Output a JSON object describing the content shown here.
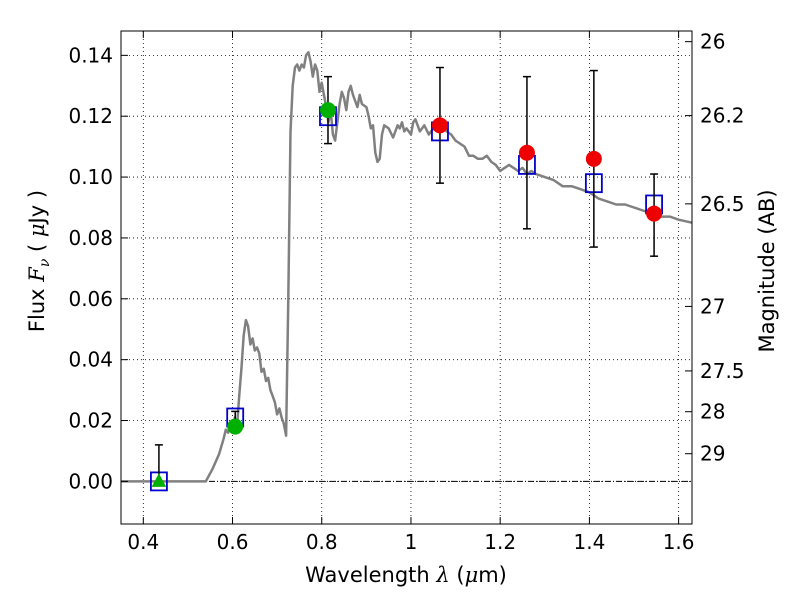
{
  "chart_data": {
    "type": "scatter",
    "xlabel": {
      "pre": "Wavelength ",
      "sym": "λ",
      "unit_open": " (",
      "unit_sym": "μ",
      "unit_rest": "m)"
    },
    "ylabel": {
      "pre": "Flux ",
      "sym": "F",
      "sub": "ν",
      "unit_open": " ( ",
      "unit_sym": "μ",
      "unit_rest": "Jy )"
    },
    "y2label": "Magnitude (AB)",
    "xlim": [
      0.35,
      1.63
    ],
    "ylim": [
      -0.014,
      0.148
    ],
    "xticks": [
      0.4,
      0.6,
      0.8,
      1.0,
      1.2,
      1.4,
      1.6
    ],
    "xtick_labels": [
      "0.4",
      "0.6",
      "0.8",
      "1",
      "1.2",
      "1.4",
      "1.6"
    ],
    "yticks": [
      0.0,
      0.02,
      0.04,
      0.06,
      0.08,
      0.1,
      0.12,
      0.14
    ],
    "ytick_labels": [
      "0.00",
      "0.02",
      "0.04",
      "0.06",
      "0.08",
      "0.10",
      "0.12",
      "0.14"
    ],
    "right_ticks": [
      {
        "label": "26",
        "flux": 0.1445
      },
      {
        "label": "26.2",
        "flux": 0.1202
      },
      {
        "label": "26.5",
        "flux": 0.0912
      },
      {
        "label": "27",
        "flux": 0.0575
      },
      {
        "label": "27.5",
        "flux": 0.0363
      },
      {
        "label": "28",
        "flux": 0.0229
      },
      {
        "label": "29",
        "flux": 0.0091
      }
    ],
    "grid": true,
    "zero_line": true,
    "colors": {
      "model": "#808080",
      "template": "#0000cc",
      "green": "#00b000",
      "red": "#ee0000",
      "errbar": "#000000"
    },
    "model_spectrum": [
      [
        0.35,
        0.0
      ],
      [
        0.54,
        0.0
      ],
      [
        0.555,
        0.004
      ],
      [
        0.57,
        0.009
      ],
      [
        0.58,
        0.014
      ],
      [
        0.585,
        0.017
      ],
      [
        0.59,
        0.016
      ],
      [
        0.595,
        0.019
      ],
      [
        0.6,
        0.016
      ],
      [
        0.605,
        0.021
      ],
      [
        0.61,
        0.018
      ],
      [
        0.615,
        0.028
      ],
      [
        0.62,
        0.037
      ],
      [
        0.625,
        0.048
      ],
      [
        0.63,
        0.053
      ],
      [
        0.635,
        0.051
      ],
      [
        0.64,
        0.045
      ],
      [
        0.645,
        0.047
      ],
      [
        0.65,
        0.043
      ],
      [
        0.655,
        0.044
      ],
      [
        0.66,
        0.042
      ],
      [
        0.665,
        0.036
      ],
      [
        0.67,
        0.037
      ],
      [
        0.675,
        0.033
      ],
      [
        0.68,
        0.034
      ],
      [
        0.685,
        0.03
      ],
      [
        0.69,
        0.028
      ],
      [
        0.695,
        0.026
      ],
      [
        0.7,
        0.022
      ],
      [
        0.705,
        0.024
      ],
      [
        0.71,
        0.021
      ],
      [
        0.715,
        0.019
      ],
      [
        0.72,
        0.015
      ],
      [
        0.725,
        0.06
      ],
      [
        0.73,
        0.115
      ],
      [
        0.735,
        0.13
      ],
      [
        0.74,
        0.136
      ],
      [
        0.745,
        0.137
      ],
      [
        0.75,
        0.135
      ],
      [
        0.755,
        0.137
      ],
      [
        0.76,
        0.136
      ],
      [
        0.765,
        0.14
      ],
      [
        0.77,
        0.141
      ],
      [
        0.775,
        0.138
      ],
      [
        0.78,
        0.133
      ],
      [
        0.785,
        0.137
      ],
      [
        0.79,
        0.135
      ],
      [
        0.795,
        0.128
      ],
      [
        0.8,
        0.131
      ],
      [
        0.81,
        0.123
      ],
      [
        0.815,
        0.118
      ],
      [
        0.82,
        0.122
      ],
      [
        0.825,
        0.114
      ],
      [
        0.83,
        0.112
      ],
      [
        0.84,
        0.124
      ],
      [
        0.845,
        0.128
      ],
      [
        0.85,
        0.126
      ],
      [
        0.855,
        0.122
      ],
      [
        0.86,
        0.128
      ],
      [
        0.865,
        0.13
      ],
      [
        0.87,
        0.127
      ],
      [
        0.875,
        0.125
      ],
      [
        0.88,
        0.123
      ],
      [
        0.885,
        0.127
      ],
      [
        0.89,
        0.124
      ],
      [
        0.9,
        0.123
      ],
      [
        0.905,
        0.12
      ],
      [
        0.91,
        0.116
      ],
      [
        0.915,
        0.117
      ],
      [
        0.92,
        0.108
      ],
      [
        0.925,
        0.105
      ],
      [
        0.93,
        0.106
      ],
      [
        0.935,
        0.114
      ],
      [
        0.94,
        0.117
      ],
      [
        0.95,
        0.116
      ],
      [
        0.96,
        0.113
      ],
      [
        0.97,
        0.117
      ],
      [
        0.975,
        0.116
      ],
      [
        0.98,
        0.118
      ],
      [
        0.985,
        0.115
      ],
      [
        0.99,
        0.116
      ],
      [
        1.0,
        0.114
      ],
      [
        1.005,
        0.118
      ],
      [
        1.01,
        0.119
      ],
      [
        1.02,
        0.115
      ],
      [
        1.03,
        0.117
      ],
      [
        1.04,
        0.114
      ],
      [
        1.05,
        0.116
      ],
      [
        1.06,
        0.115
      ],
      [
        1.07,
        0.118
      ],
      [
        1.08,
        0.115
      ],
      [
        1.09,
        0.114
      ],
      [
        1.1,
        0.112
      ],
      [
        1.12,
        0.11
      ],
      [
        1.13,
        0.107
      ],
      [
        1.14,
        0.107
      ],
      [
        1.15,
        0.106
      ],
      [
        1.16,
        0.106
      ],
      [
        1.17,
        0.107
      ],
      [
        1.18,
        0.105
      ],
      [
        1.19,
        0.104
      ],
      [
        1.2,
        0.102
      ],
      [
        1.21,
        0.103
      ],
      [
        1.22,
        0.104
      ],
      [
        1.23,
        0.103
      ],
      [
        1.24,
        0.102
      ],
      [
        1.25,
        0.103
      ],
      [
        1.26,
        0.101
      ],
      [
        1.27,
        0.102
      ],
      [
        1.28,
        0.101
      ],
      [
        1.3,
        0.1
      ],
      [
        1.32,
        0.099
      ],
      [
        1.34,
        0.097
      ],
      [
        1.36,
        0.097
      ],
      [
        1.38,
        0.096
      ],
      [
        1.4,
        0.095
      ],
      [
        1.42,
        0.093
      ],
      [
        1.44,
        0.092
      ],
      [
        1.46,
        0.091
      ],
      [
        1.48,
        0.091
      ],
      [
        1.5,
        0.09
      ],
      [
        1.52,
        0.089
      ],
      [
        1.54,
        0.088
      ],
      [
        1.56,
        0.087
      ],
      [
        1.58,
        0.087
      ],
      [
        1.6,
        0.086
      ],
      [
        1.63,
        0.085
      ]
    ],
    "template_points": [
      {
        "x": 0.435,
        "y": 0.0
      },
      {
        "x": 0.606,
        "y": 0.021
      },
      {
        "x": 0.814,
        "y": 0.12
      },
      {
        "x": 1.065,
        "y": 0.115
      },
      {
        "x": 1.26,
        "y": 0.104
      },
      {
        "x": 1.41,
        "y": 0.098
      },
      {
        "x": 1.545,
        "y": 0.091
      }
    ],
    "observed": [
      {
        "x": 0.435,
        "y": 0.0,
        "yerr_low": 0.0,
        "yerr_high": 0.012,
        "marker": "triangle",
        "color": "green"
      },
      {
        "x": 0.606,
        "y": 0.018,
        "yerr_low": 0.0,
        "yerr_high": 0.005,
        "marker": "circle",
        "color": "green"
      },
      {
        "x": 0.814,
        "y": 0.122,
        "yerr_low": 0.011,
        "yerr_high": 0.011,
        "marker": "circle",
        "color": "green"
      },
      {
        "x": 1.065,
        "y": 0.117,
        "yerr_low": 0.019,
        "yerr_high": 0.019,
        "marker": "circle",
        "color": "red"
      },
      {
        "x": 1.26,
        "y": 0.108,
        "yerr_low": 0.025,
        "yerr_high": 0.025,
        "marker": "circle",
        "color": "red"
      },
      {
        "x": 1.41,
        "y": 0.106,
        "yerr_low": 0.029,
        "yerr_high": 0.029,
        "marker": "circle",
        "color": "red"
      },
      {
        "x": 1.545,
        "y": 0.088,
        "yerr_low": 0.014,
        "yerr_high": 0.013,
        "marker": "circle",
        "color": "red"
      }
    ]
  }
}
